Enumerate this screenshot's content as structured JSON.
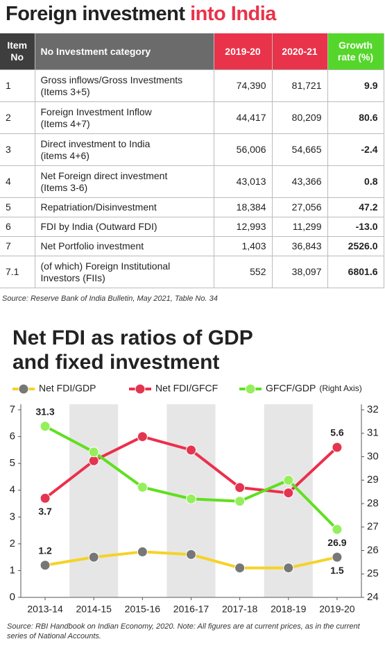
{
  "title": "Foreign investment",
  "title_highlight": "into India",
  "table": {
    "header": [
      "Item\nNo",
      "No Investment category",
      "2019-20",
      "2020-21",
      "Growth\nrate (%)"
    ],
    "rows": [
      [
        "1",
        "Gross inflows/Gross Investments\n(Items 3+5)",
        "74,390",
        "81,721",
        "9.9"
      ],
      [
        "2",
        "Foreign Investment Inflow\n(Items 4+7)",
        "44,417",
        "80,209",
        "80.6"
      ],
      [
        "3",
        "Direct investment to India\n(items 4+6)",
        "56,006",
        "54,665",
        "-2.4"
      ],
      [
        "4",
        "Net Foreign direct investment\n(Items 3-6)",
        "43,013",
        "43,366",
        "0.8"
      ],
      [
        "5",
        "Repatriation/Disinvestment",
        "18,384",
        "27,056",
        "47.2"
      ],
      [
        "6",
        "FDI by India (Outward FDI)",
        "12,993",
        "11,299",
        "-13.0"
      ],
      [
        "7",
        "Net Portfolio investment",
        "1,403",
        "36,843",
        "2526.0"
      ],
      [
        "7.1",
        "(of which) Foreign Institutional\nInvestors (FIIs)",
        "552",
        "38,097",
        "6801.6"
      ]
    ]
  },
  "table_source": "Source: Reserve Bank of India Bulletin, May 2021, Table No. 34",
  "chart_data": {
    "type": "line",
    "title": "Net FDI as ratios of GDP and fixed investment",
    "categories": [
      "2013-14",
      "2014-15",
      "2015-16",
      "2016-17",
      "2017-18",
      "2018-19",
      "2019-20"
    ],
    "series": [
      {
        "name": "Net FDI/GDP",
        "color": "#f5d327",
        "marker_color": "#777777",
        "values": [
          1.2,
          1.5,
          1.7,
          1.6,
          1.1,
          1.1,
          1.5
        ]
      },
      {
        "name": "Net FDI/GFCF",
        "color": "#ec2f4b",
        "marker_color": "#e3354f",
        "values": [
          3.7,
          5.1,
          6.0,
          5.5,
          4.1,
          3.9,
          5.6
        ]
      },
      {
        "name": "GFCF/GDP",
        "color": "#5fe01e",
        "marker_color": "#95ef5c",
        "axis": "y2",
        "values": [
          31.3,
          30.2,
          28.7,
          28.2,
          28.1,
          29.0,
          26.9
        ]
      }
    ],
    "y2_legend_note": "(Right Axis)",
    "ylim": [
      0,
      7
    ],
    "yticks": [
      0,
      1,
      2,
      3,
      4,
      5,
      6,
      7
    ],
    "y2lim": [
      24,
      32
    ],
    "y2ticks": [
      24,
      25,
      26,
      27,
      28,
      29,
      30,
      31,
      32
    ],
    "source": "Source: RBI Handbook on Indian Economy, 2020. Note: All figures are at current prices, as in the current series of National Accounts."
  }
}
